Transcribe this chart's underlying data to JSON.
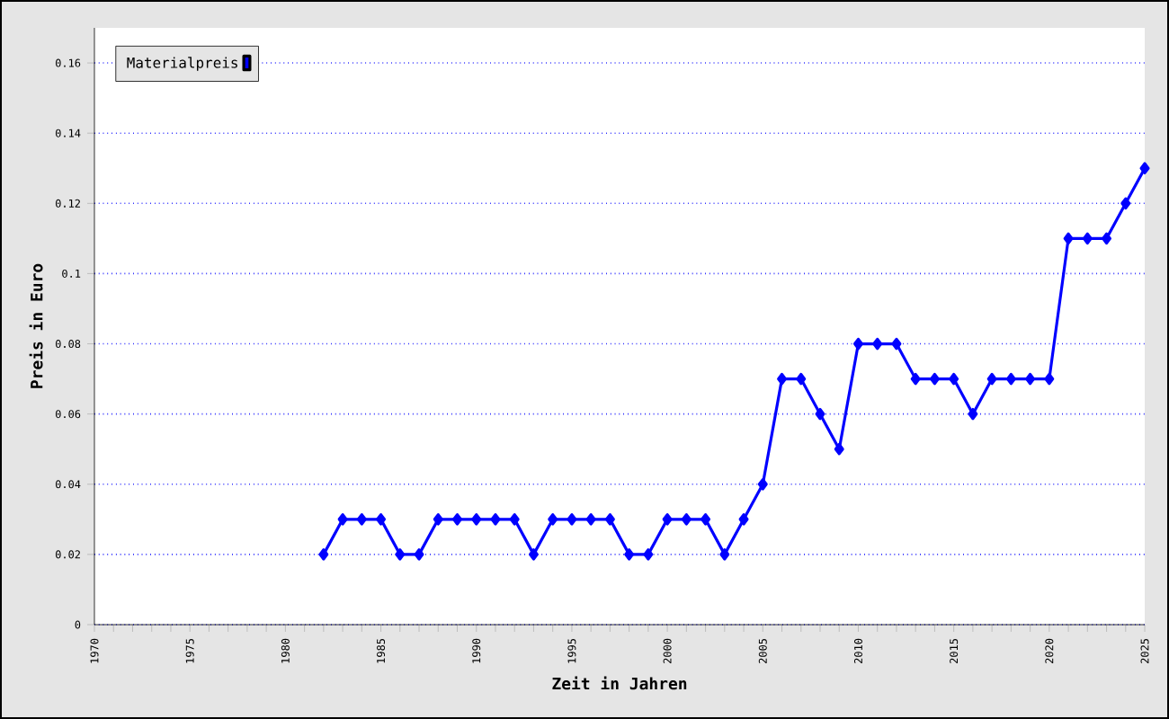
{
  "chart_data": {
    "type": "line",
    "xlabel": "Zeit in Jahren",
    "ylabel": "Preis in Euro",
    "x": [
      1982,
      1983,
      1984,
      1985,
      1986,
      1987,
      1988,
      1989,
      1990,
      1991,
      1992,
      1993,
      1994,
      1995,
      1996,
      1997,
      1998,
      1999,
      2000,
      2001,
      2002,
      2003,
      2004,
      2005,
      2006,
      2007,
      2008,
      2009,
      2010,
      2011,
      2012,
      2013,
      2014,
      2015,
      2016,
      2017,
      2018,
      2019,
      2020,
      2021,
      2022,
      2023,
      2024,
      2025
    ],
    "series": [
      {
        "name": "Materialpreis",
        "color": "#0000ff",
        "values": [
          0.02,
          0.03,
          0.03,
          0.03,
          0.02,
          0.02,
          0.03,
          0.03,
          0.03,
          0.03,
          0.03,
          0.02,
          0.03,
          0.03,
          0.03,
          0.03,
          0.02,
          0.02,
          0.03,
          0.03,
          0.03,
          0.02,
          0.03,
          0.04,
          0.07,
          0.07,
          0.06,
          0.05,
          0.08,
          0.08,
          0.08,
          0.07,
          0.07,
          0.07,
          0.06,
          0.07,
          0.07,
          0.07,
          0.07,
          0.11,
          0.11,
          0.11,
          0.12,
          0.13
        ]
      }
    ],
    "xlim": [
      1970,
      2025
    ],
    "xticks": [
      1970,
      {
        "value": 1971,
        "label": null
      },
      {
        "value": 1972,
        "label": null
      },
      {
        "value": 1973,
        "label": null
      },
      {
        "value": 1974,
        "label": null
      },
      1975,
      {
        "value": 1976,
        "label": null
      },
      {
        "value": 1977,
        "label": null
      },
      {
        "value": 1978,
        "label": null
      },
      {
        "value": 1979,
        "label": null
      },
      1980,
      {
        "value": 1981,
        "label": null
      },
      {
        "value": 1982,
        "label": null
      },
      {
        "value": 1983,
        "label": null
      },
      {
        "value": 1984,
        "label": null
      },
      1985,
      {
        "value": 1986,
        "label": null
      },
      {
        "value": 1987,
        "label": null
      },
      {
        "value": 1988,
        "label": null
      },
      {
        "value": 1989,
        "label": null
      },
      1990,
      {
        "value": 1991,
        "label": null
      },
      {
        "value": 1992,
        "label": null
      },
      {
        "value": 1993,
        "label": null
      },
      {
        "value": 1994,
        "label": null
      },
      1995,
      {
        "value": 1996,
        "label": null
      },
      {
        "value": 1997,
        "label": null
      },
      {
        "value": 1998,
        "label": null
      },
      {
        "value": 1999,
        "label": null
      },
      2000,
      {
        "value": 2001,
        "label": null
      },
      {
        "value": 2002,
        "label": null
      },
      {
        "value": 2003,
        "label": null
      },
      {
        "value": 2004,
        "label": null
      },
      2005,
      {
        "value": 2006,
        "label": null
      },
      {
        "value": 2007,
        "label": null
      },
      {
        "value": 2008,
        "label": null
      },
      {
        "value": 2009,
        "label": null
      },
      2010,
      {
        "value": 2011,
        "label": null
      },
      {
        "value": 2012,
        "label": null
      },
      {
        "value": 2013,
        "label": null
      },
      {
        "value": 2014,
        "label": null
      },
      2015,
      {
        "value": 2016,
        "label": null
      },
      {
        "value": 2017,
        "label": null
      },
      {
        "value": 2018,
        "label": null
      },
      {
        "value": 2019,
        "label": null
      },
      2020,
      {
        "value": 2021,
        "label": null
      },
      {
        "value": 2022,
        "label": null
      },
      {
        "value": 2023,
        "label": null
      },
      {
        "value": 2024,
        "label": null
      },
      2025
    ],
    "ylim": [
      0,
      0.17
    ],
    "yticks": [
      0,
      0.02,
      0.04,
      0.06,
      0.08,
      0.1,
      0.12,
      0.14,
      0.16
    ],
    "grid": "y",
    "legend": "top left",
    "marker": "diamond",
    "line_style": "solid"
  }
}
